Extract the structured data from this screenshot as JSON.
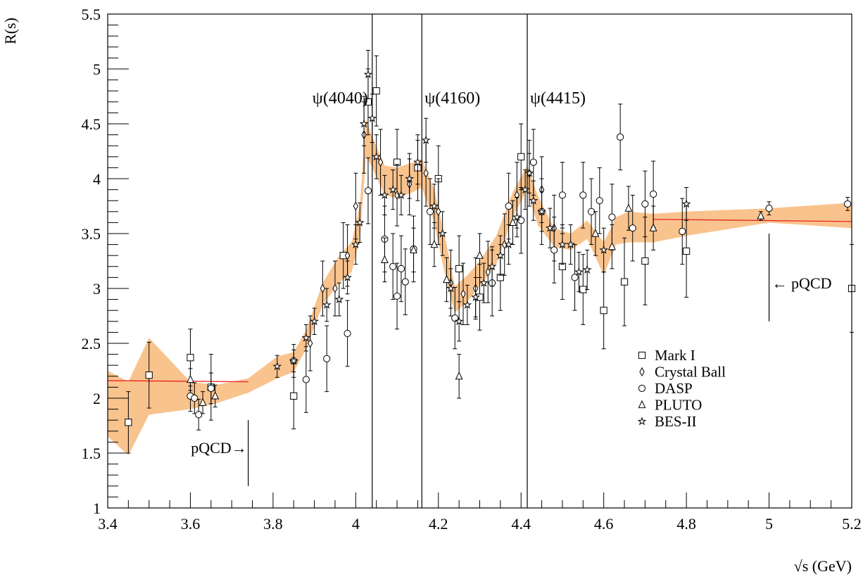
{
  "chart_data": {
    "type": "scatter",
    "xlabel": "√s (GeV)",
    "ylabel": "R(s)",
    "xlim": [
      3.4,
      5.2
    ],
    "ylim": [
      1.0,
      5.5
    ],
    "x_ticks": [
      "3.4",
      "3.6",
      "3.8",
      "4",
      "4.2",
      "4.4",
      "4.6",
      "4.8",
      "5",
      "5.2"
    ],
    "y_ticks": [
      "1",
      "1.5",
      "2",
      "2.5",
      "3",
      "3.5",
      "4",
      "4.5",
      "5",
      "5.5"
    ],
    "grid": false,
    "legend_position": "lower-right",
    "colors": {
      "band": "#f9c38e",
      "fit_line": "#e8241f",
      "axis": "#000000"
    },
    "resonances": [
      {
        "label": "ψ(4040)",
        "x": 4.04
      },
      {
        "label": "ψ(4160)",
        "x": 4.16
      },
      {
        "label": "ψ(4415)",
        "x": 4.415
      }
    ],
    "pqcd_markers": [
      {
        "label": "pQCD→",
        "x": 3.74,
        "y_from": 1.2,
        "y_to": 1.8,
        "side": "left"
      },
      {
        "label": "← pQCD",
        "x": 5.0,
        "y_from": 2.7,
        "y_to": 3.5,
        "side": "right"
      }
    ],
    "uncertainty_band": [
      {
        "x": 3.4,
        "lo": 1.65,
        "hi": 2.25
      },
      {
        "x": 3.45,
        "lo": 1.48,
        "hi": 2.15
      },
      {
        "x": 3.5,
        "lo": 1.85,
        "hi": 2.55
      },
      {
        "x": 3.6,
        "lo": 1.9,
        "hi": 2.15
      },
      {
        "x": 3.66,
        "lo": 1.95,
        "hi": 2.12
      },
      {
        "x": 3.74,
        "lo": 2.05,
        "hi": 2.18
      },
      {
        "x": 3.81,
        "lo": 2.18,
        "hi": 2.38
      },
      {
        "x": 3.85,
        "lo": 2.24,
        "hi": 2.42
      },
      {
        "x": 3.88,
        "lo": 2.45,
        "hi": 2.62
      },
      {
        "x": 3.92,
        "lo": 2.85,
        "hi": 3.05
      },
      {
        "x": 3.96,
        "lo": 3.05,
        "hi": 3.3
      },
      {
        "x": 3.99,
        "lo": 3.15,
        "hi": 3.42
      },
      {
        "x": 4.01,
        "lo": 3.45,
        "hi": 3.75
      },
      {
        "x": 4.025,
        "lo": 4.2,
        "hi": 4.55
      },
      {
        "x": 4.04,
        "lo": 4.1,
        "hi": 4.38
      },
      {
        "x": 4.07,
        "lo": 3.85,
        "hi": 4.12
      },
      {
        "x": 4.1,
        "lo": 3.82,
        "hi": 4.1
      },
      {
        "x": 4.14,
        "lo": 3.88,
        "hi": 4.15
      },
      {
        "x": 4.16,
        "lo": 3.92,
        "hi": 4.18
      },
      {
        "x": 4.19,
        "lo": 3.6,
        "hi": 3.9
      },
      {
        "x": 4.22,
        "lo": 3.05,
        "hi": 3.4
      },
      {
        "x": 4.24,
        "lo": 2.78,
        "hi": 3.02
      },
      {
        "x": 4.27,
        "lo": 2.88,
        "hi": 3.12
      },
      {
        "x": 4.3,
        "lo": 3.02,
        "hi": 3.25
      },
      {
        "x": 4.34,
        "lo": 3.22,
        "hi": 3.48
      },
      {
        "x": 4.38,
        "lo": 3.65,
        "hi": 3.88
      },
      {
        "x": 4.415,
        "lo": 3.9,
        "hi": 4.12
      },
      {
        "x": 4.44,
        "lo": 3.58,
        "hi": 3.85
      },
      {
        "x": 4.48,
        "lo": 3.38,
        "hi": 3.55
      },
      {
        "x": 4.52,
        "lo": 3.35,
        "hi": 3.5
      },
      {
        "x": 4.56,
        "lo": 3.45,
        "hi": 3.62
      },
      {
        "x": 4.6,
        "lo": 3.12,
        "hi": 3.42
      },
      {
        "x": 4.63,
        "lo": 3.4,
        "hi": 3.65
      },
      {
        "x": 4.66,
        "lo": 3.42,
        "hi": 3.7
      },
      {
        "x": 4.72,
        "lo": 3.42,
        "hi": 3.68
      },
      {
        "x": 4.8,
        "lo": 3.48,
        "hi": 3.7
      },
      {
        "x": 5.0,
        "lo": 3.6,
        "hi": 3.73
      },
      {
        "x": 5.2,
        "lo": 3.55,
        "hi": 3.78
      }
    ],
    "fit_lines": [
      {
        "x": [
          3.4,
          3.74
        ],
        "y": [
          2.16,
          2.15
        ]
      },
      {
        "x": [
          4.72,
          5.2
        ],
        "y": [
          3.63,
          3.61
        ]
      }
    ],
    "series": [
      {
        "name": "Mark I",
        "marker": "square",
        "points": [
          [
            3.45,
            1.78,
            0.28
          ],
          [
            3.5,
            2.21,
            0.3
          ],
          [
            3.6,
            2.37,
            0.26
          ],
          [
            3.65,
            2.1,
            0.3
          ],
          [
            3.85,
            2.02,
            0.3
          ],
          [
            3.97,
            3.3,
            0.3
          ],
          [
            4.03,
            4.7,
            0.3
          ],
          [
            4.05,
            4.8,
            0.32
          ],
          [
            4.1,
            4.15,
            0.3
          ],
          [
            4.15,
            4.1,
            0.3
          ],
          [
            4.2,
            4.0,
            0.3
          ],
          [
            4.25,
            3.18,
            0.3
          ],
          [
            4.3,
            2.92,
            0.3
          ],
          [
            4.35,
            3.1,
            0.3
          ],
          [
            4.4,
            4.2,
            0.3
          ],
          [
            4.5,
            3.2,
            0.3
          ],
          [
            4.55,
            2.99,
            0.32
          ],
          [
            4.6,
            2.8,
            0.35
          ],
          [
            4.65,
            3.06,
            0.4
          ],
          [
            4.7,
            3.25,
            0.4
          ],
          [
            4.8,
            3.34,
            0.42
          ],
          [
            5.2,
            3.0,
            0.4
          ]
        ]
      },
      {
        "name": "Crystal Ball",
        "marker": "diamond",
        "points": [
          [
            3.89,
            2.5,
            0.25
          ],
          [
            3.92,
            3.0,
            0.25
          ],
          [
            3.95,
            3.0,
            0.25
          ],
          [
            3.98,
            3.3,
            0.28
          ],
          [
            4.0,
            3.75,
            0.3
          ],
          [
            4.02,
            4.4,
            0.35
          ],
          [
            4.06,
            4.15,
            0.3
          ],
          [
            4.1,
            3.85,
            0.28
          ],
          [
            4.13,
            3.95,
            0.28
          ],
          [
            4.17,
            4.05,
            0.3
          ],
          [
            4.2,
            3.7,
            0.3
          ],
          [
            4.23,
            3.05,
            0.3
          ],
          [
            4.26,
            2.95,
            0.28
          ],
          [
            4.29,
            3.0,
            0.28
          ],
          [
            4.32,
            3.15,
            0.28
          ],
          [
            4.36,
            3.4,
            0.28
          ],
          [
            4.39,
            3.85,
            0.3
          ],
          [
            4.42,
            4.05,
            0.3
          ],
          [
            4.45,
            3.9,
            0.3
          ],
          [
            4.48,
            3.55,
            0.3
          ]
        ]
      },
      {
        "name": "DASP",
        "marker": "circle",
        "points": [
          [
            3.6,
            2.02,
            0.14
          ],
          [
            3.61,
            2.0,
            0.14
          ],
          [
            3.62,
            1.85,
            0.14
          ],
          [
            3.65,
            2.09,
            0.14
          ],
          [
            3.85,
            2.34,
            0.15
          ],
          [
            3.88,
            2.17,
            0.3
          ],
          [
            3.93,
            2.36,
            0.3
          ],
          [
            3.98,
            2.59,
            0.3
          ],
          [
            4.03,
            3.89,
            0.3
          ],
          [
            4.07,
            3.45,
            0.3
          ],
          [
            4.09,
            3.2,
            0.3
          ],
          [
            4.11,
            3.18,
            0.3
          ],
          [
            4.12,
            3.06,
            0.3
          ],
          [
            4.14,
            3.36,
            0.3
          ],
          [
            4.1,
            2.93,
            0.3
          ],
          [
            4.18,
            3.7,
            0.3
          ],
          [
            4.24,
            2.73,
            0.28
          ],
          [
            4.33,
            3.05,
            0.3
          ],
          [
            4.37,
            3.75,
            0.3
          ],
          [
            4.4,
            3.62,
            0.3
          ],
          [
            4.43,
            4.15,
            0.3
          ],
          [
            4.45,
            3.7,
            0.3
          ],
          [
            4.48,
            3.35,
            0.3
          ],
          [
            4.5,
            3.85,
            0.3
          ],
          [
            4.53,
            3.1,
            0.3
          ],
          [
            4.55,
            3.85,
            0.3
          ],
          [
            4.57,
            3.7,
            0.3
          ],
          [
            4.59,
            3.8,
            0.3
          ],
          [
            4.62,
            3.65,
            0.3
          ],
          [
            4.64,
            4.38,
            0.3
          ],
          [
            4.67,
            3.55,
            0.3
          ],
          [
            4.7,
            3.77,
            0.3
          ],
          [
            4.72,
            3.86,
            0.3
          ],
          [
            4.79,
            3.52,
            0.3
          ],
          [
            5.0,
            3.73,
            0.06
          ],
          [
            5.19,
            3.77,
            0.06
          ]
        ]
      },
      {
        "name": "PLUTO",
        "marker": "triangle",
        "points": [
          [
            3.6,
            2.17,
            0.1
          ],
          [
            3.63,
            1.96,
            0.1
          ],
          [
            3.66,
            2.02,
            0.1
          ],
          [
            4.07,
            3.26,
            0.2
          ],
          [
            4.14,
            3.35,
            0.2
          ],
          [
            4.19,
            3.4,
            0.2
          ],
          [
            4.22,
            3.08,
            0.2
          ],
          [
            4.25,
            2.2,
            0.2
          ],
          [
            4.3,
            3.3,
            0.2
          ],
          [
            4.38,
            3.6,
            0.2
          ],
          [
            4.58,
            3.5,
            0.2
          ],
          [
            4.62,
            3.38,
            0.2
          ],
          [
            4.66,
            3.73,
            0.2
          ],
          [
            4.72,
            3.55,
            0.2
          ],
          [
            4.98,
            3.66,
            0.04
          ]
        ]
      },
      {
        "name": "BES-II",
        "marker": "star",
        "points": [
          [
            3.81,
            2.29,
            0.1
          ],
          [
            3.85,
            2.34,
            0.1
          ],
          [
            3.88,
            2.55,
            0.12
          ],
          [
            3.9,
            2.7,
            0.12
          ],
          [
            3.93,
            2.85,
            0.15
          ],
          [
            3.96,
            2.9,
            0.15
          ],
          [
            3.98,
            3.1,
            0.15
          ],
          [
            4.0,
            3.4,
            0.18
          ],
          [
            4.01,
            3.6,
            0.18
          ],
          [
            4.02,
            4.5,
            0.2
          ],
          [
            4.03,
            4.95,
            0.22
          ],
          [
            4.04,
            4.55,
            0.22
          ],
          [
            4.05,
            4.2,
            0.2
          ],
          [
            4.07,
            3.85,
            0.18
          ],
          [
            4.09,
            3.9,
            0.18
          ],
          [
            4.11,
            3.85,
            0.18
          ],
          [
            4.13,
            4.0,
            0.18
          ],
          [
            4.15,
            4.15,
            0.2
          ],
          [
            4.17,
            4.35,
            0.2
          ],
          [
            4.19,
            3.75,
            0.2
          ],
          [
            4.21,
            3.5,
            0.2
          ],
          [
            4.23,
            3.0,
            0.18
          ],
          [
            4.25,
            2.7,
            0.18
          ],
          [
            4.27,
            2.85,
            0.18
          ],
          [
            4.29,
            2.92,
            0.18
          ],
          [
            4.31,
            3.05,
            0.18
          ],
          [
            4.33,
            3.2,
            0.18
          ],
          [
            4.35,
            3.3,
            0.18
          ],
          [
            4.37,
            3.4,
            0.18
          ],
          [
            4.39,
            3.65,
            0.18
          ],
          [
            4.41,
            3.9,
            0.18
          ],
          [
            4.42,
            4.05,
            0.18
          ],
          [
            4.43,
            3.8,
            0.18
          ],
          [
            4.45,
            3.7,
            0.18
          ],
          [
            4.47,
            3.55,
            0.18
          ],
          [
            4.5,
            3.4,
            0.18
          ],
          [
            4.52,
            3.4,
            0.18
          ],
          [
            4.54,
            3.15,
            0.18
          ],
          [
            4.56,
            3.17,
            0.18
          ],
          [
            4.6,
            3.35,
            0.2
          ],
          [
            4.8,
            3.77,
            0.15
          ]
        ]
      }
    ]
  }
}
